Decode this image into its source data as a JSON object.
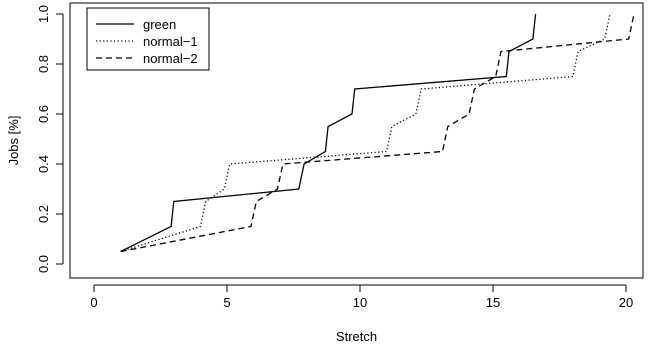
{
  "chart_data": {
    "type": "line",
    "xlabel": "Stretch",
    "ylabel": "Jobs [%]",
    "xlim": [
      0,
      20.5
    ],
    "ylim": [
      0,
      1.0
    ],
    "x_ticks": [
      0,
      5,
      10,
      15,
      20
    ],
    "y_ticks": [
      0.0,
      0.2,
      0.4,
      0.6,
      0.8,
      1.0
    ],
    "x_tick_labels": [
      "0",
      "5",
      "10",
      "15",
      "20"
    ],
    "y_tick_labels": [
      "0.0",
      "0.2",
      "0.4",
      "0.6",
      "0.8",
      "1.0"
    ],
    "legend_position": "top-left",
    "grid": false,
    "series": [
      {
        "name": "green",
        "dash": "solid",
        "x": [
          1.0,
          2.9,
          3.0,
          7.7,
          7.9,
          8.7,
          8.8,
          9.7,
          9.8,
          15.5,
          15.6,
          16.5,
          16.6
        ],
        "y": [
          0.05,
          0.15,
          0.25,
          0.3,
          0.4,
          0.45,
          0.55,
          0.6,
          0.7,
          0.75,
          0.85,
          0.9,
          1.0
        ]
      },
      {
        "name": "normal−1",
        "dash": "dotted",
        "x": [
          1.0,
          4.0,
          4.2,
          4.9,
          5.1,
          11.0,
          11.2,
          12.1,
          12.3,
          18.0,
          18.2,
          19.2,
          19.4
        ],
        "y": [
          0.05,
          0.15,
          0.25,
          0.3,
          0.4,
          0.45,
          0.55,
          0.6,
          0.7,
          0.75,
          0.85,
          0.9,
          1.0
        ]
      },
      {
        "name": "normal−2",
        "dash": "dashed",
        "x": [
          1.0,
          5.9,
          6.1,
          6.9,
          7.1,
          13.1,
          13.3,
          14.1,
          14.3,
          15.1,
          15.3,
          20.1,
          20.3
        ],
        "y": [
          0.05,
          0.15,
          0.25,
          0.3,
          0.4,
          0.45,
          0.55,
          0.6,
          0.7,
          0.75,
          0.85,
          0.9,
          1.0
        ]
      }
    ]
  }
}
